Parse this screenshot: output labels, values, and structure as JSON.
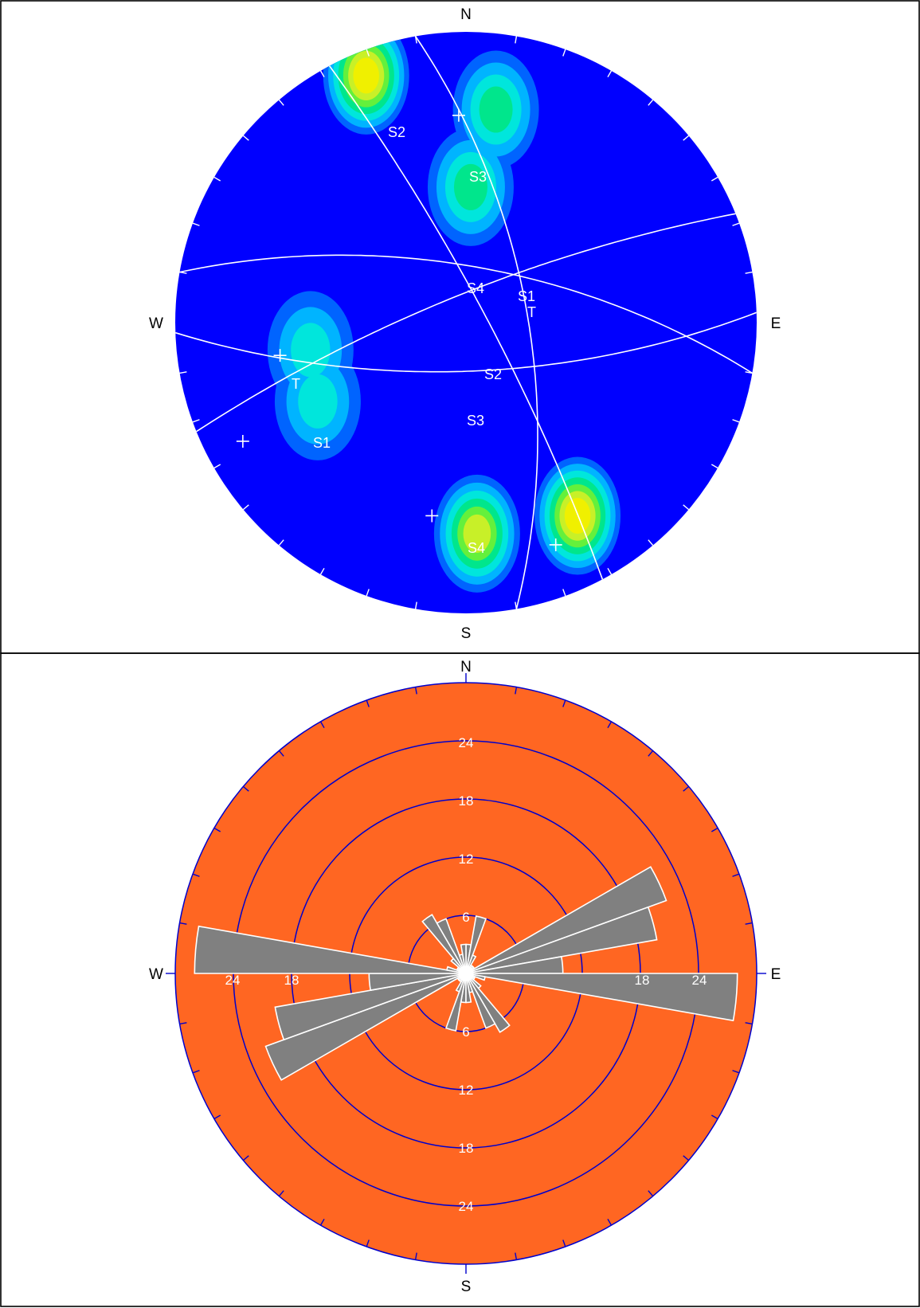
{
  "chart_data": [
    {
      "type": "stereonet",
      "projection": "equal-angle",
      "compass": {
        "north": "N",
        "east": "E",
        "south": "S",
        "west": "W"
      },
      "colors": {
        "background": "#0000ff",
        "contour_scale": [
          "#0000ff",
          "#0064ff",
          "#00b4ff",
          "#00e6dc",
          "#00e68c",
          "#64f03c",
          "#c8f028",
          "#f0f000"
        ],
        "lines": "#ffffff"
      },
      "density_peaks": [
        {
          "trend": 150,
          "plunge": 15,
          "weight": 1.0
        },
        {
          "trend": 177,
          "plunge": 18,
          "weight": 0.8
        },
        {
          "trend": 338,
          "plunge": 5,
          "weight": 1.0
        },
        {
          "trend": 8,
          "plunge": 17,
          "weight": 0.62
        },
        {
          "trend": 2,
          "plunge": 40,
          "weight": 0.5
        },
        {
          "trend": 260,
          "plunge": 33,
          "weight": 0.42
        },
        {
          "trend": 242,
          "plunge": 30,
          "weight": 0.42
        }
      ],
      "planes": [
        {
          "label": "S1",
          "dip_direction": 62,
          "dip": 82,
          "pole_label_shown": "S1"
        },
        {
          "label": "S2",
          "dip_direction": 338,
          "dip": 79,
          "pole_label_shown": "S2"
        },
        {
          "label": "S3",
          "dip_direction": 10,
          "dip": 68,
          "pole_label_shown": "S3"
        },
        {
          "label": "S4",
          "dip_direction": 178,
          "dip": 71,
          "pole_label_shown": "S4"
        },
        {
          "label": "T",
          "dip_direction": 80,
          "dip": 66,
          "pole_label_shown": "T"
        }
      ],
      "plane_labels": [
        "S4",
        "S1",
        "T",
        "S2",
        "S3"
      ],
      "pole_labels": [
        "S2",
        "S3",
        "T",
        "S1",
        "S4"
      ]
    },
    {
      "type": "rose",
      "compass": {
        "north": "N",
        "east": "E",
        "south": "S",
        "west": "W"
      },
      "rings": [
        6,
        12,
        18,
        24
      ],
      "ring_labels_shown": [
        "24",
        "18",
        "12",
        "6",
        "6",
        "12",
        "18",
        "24",
        "24",
        "18",
        "18",
        "24"
      ],
      "bin_width_deg": 10,
      "colors": {
        "background": "#ff6622",
        "rings": "#0000cc",
        "petals": "#808080",
        "petal_outline": "#ffffff"
      },
      "bins": [
        {
          "from": 0,
          "to": 10,
          "value": 3
        },
        {
          "from": 10,
          "to": 20,
          "value": 6
        },
        {
          "from": 20,
          "to": 30,
          "value": 2
        },
        {
          "from": 30,
          "to": 40,
          "value": 1
        },
        {
          "from": 40,
          "to": 50,
          "value": 1
        },
        {
          "from": 50,
          "to": 60,
          "value": 1
        },
        {
          "from": 60,
          "to": 70,
          "value": 22
        },
        {
          "from": 70,
          "to": 80,
          "value": 20
        },
        {
          "from": 80,
          "to": 90,
          "value": 10
        },
        {
          "from": 90,
          "to": 100,
          "value": 28
        },
        {
          "from": 100,
          "to": 110,
          "value": 2
        },
        {
          "from": 110,
          "to": 120,
          "value": 1
        },
        {
          "from": 120,
          "to": 130,
          "value": 1
        },
        {
          "from": 130,
          "to": 140,
          "value": 2
        },
        {
          "from": 140,
          "to": 150,
          "value": 7
        },
        {
          "from": 150,
          "to": 160,
          "value": 6
        },
        {
          "from": 160,
          "to": 170,
          "value": 2
        },
        {
          "from": 170,
          "to": 180,
          "value": 3
        }
      ]
    }
  ]
}
